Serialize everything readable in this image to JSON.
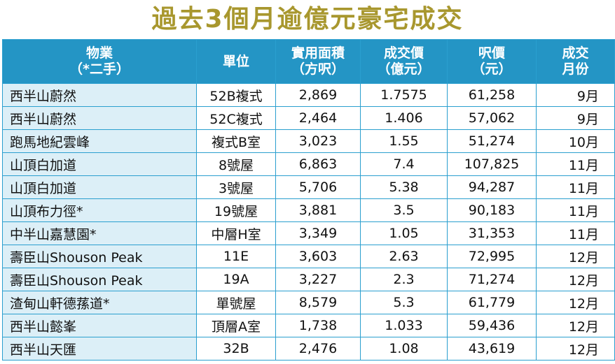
{
  "title": "過去3個月逾億元豪宅成交",
  "headers": {
    "property": [
      "物業",
      "（*二手）"
    ],
    "unit": [
      "單位"
    ],
    "area": [
      "實用面積",
      "（方呎）"
    ],
    "price": [
      "成交價",
      "（億元）"
    ],
    "psf": [
      "呎價",
      "（元）"
    ],
    "month": [
      "成交",
      "月份"
    ]
  },
  "rows": [
    {
      "property": "西半山蔚然",
      "unit": "52B複式",
      "area": "2,869",
      "price": "1.7575",
      "psf": "61,258",
      "month": "9月"
    },
    {
      "property": "西半山蔚然",
      "unit": "52C複式",
      "area": "2,464",
      "price": "1.406",
      "psf": "57,062",
      "month": "9月"
    },
    {
      "property": "跑馬地紀雲峰",
      "unit": "複式B室",
      "area": "3,023",
      "price": "1.55",
      "psf": "51,274",
      "month": "10月"
    },
    {
      "property": "山頂白加道",
      "unit": "8號屋",
      "area": "6,863",
      "price": "7.4",
      "psf": "107,825",
      "month": "11月"
    },
    {
      "property": "山頂白加道",
      "unit": "3號屋",
      "area": "5,706",
      "price": "5.38",
      "psf": "94,287",
      "month": "11月"
    },
    {
      "property": "山頂布力徑*",
      "unit": "19號屋",
      "area": "3,881",
      "price": "3.5",
      "psf": "90,183",
      "month": "11月"
    },
    {
      "property": "中半山嘉慧園*",
      "unit": "中層H室",
      "area": "3,349",
      "price": "1.05",
      "psf": "31,353",
      "month": "11月"
    },
    {
      "property": "壽臣山Shouson Peak",
      "unit": "11E",
      "area": "3,603",
      "price": "2.63",
      "psf": "72,995",
      "month": "12月"
    },
    {
      "property": "壽臣山Shouson Peak",
      "unit": "19A",
      "area": "3,227",
      "price": "2.3",
      "psf": "71,274",
      "month": "12月"
    },
    {
      "property": "渣甸山軒德蓀道*",
      "unit": "單號屋",
      "area": "8,579",
      "price": "5.3",
      "psf": "61,779",
      "month": "12月"
    },
    {
      "property": "西半山懿峯",
      "unit": "頂層A室",
      "area": "1,738",
      "price": "1.033",
      "psf": "59,436",
      "month": "12月"
    },
    {
      "property": "西半山天匯",
      "unit": "32B",
      "area": "2,476",
      "price": "1.08",
      "psf": "43,619",
      "month": "12月"
    }
  ]
}
